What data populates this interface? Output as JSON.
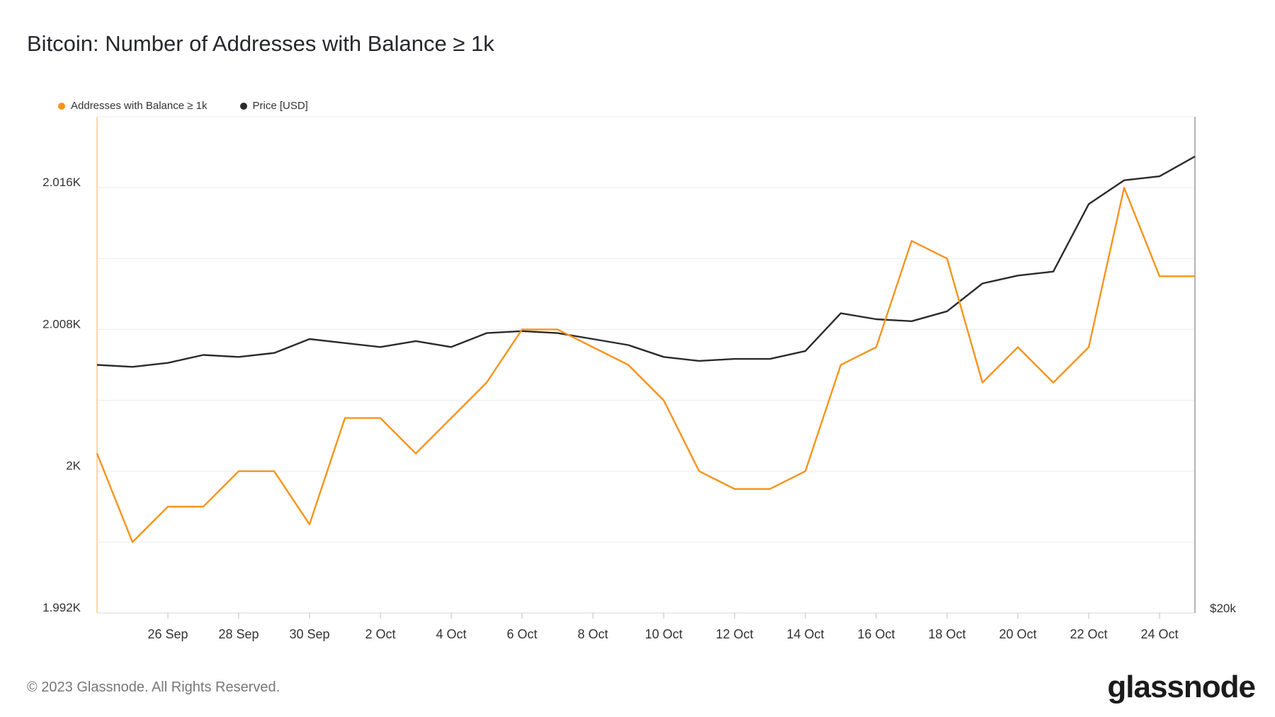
{
  "title": "Bitcoin: Number of Addresses with Balance ≥ 1k",
  "footer": {
    "copyright": "© 2023 Glassnode. All Rights Reserved.",
    "brand": "glassnode"
  },
  "chart_data": {
    "type": "line",
    "title": "Bitcoin: Number of Addresses with Balance ≥ 1k",
    "x_tick_labels": [
      "26 Sep",
      "28 Sep",
      "30 Sep",
      "2 Oct",
      "4 Oct",
      "6 Oct",
      "8 Oct",
      "10 Oct",
      "12 Oct",
      "14 Oct",
      "16 Oct",
      "18 Oct",
      "20 Oct",
      "22 Oct",
      "24 Oct"
    ],
    "y_left_ticks": [
      "1.992K",
      "2K",
      "2.008K",
      "2.016K"
    ],
    "y_left_tick_values": [
      1992,
      2000,
      2008,
      2016
    ],
    "y_left_range": [
      1992,
      2020
    ],
    "y_right_tick_label": "$20k",
    "legend_position": "top-left",
    "grid": true,
    "x": [
      "2023-09-24",
      "2023-09-25",
      "2023-09-26",
      "2023-09-27",
      "2023-09-28",
      "2023-09-29",
      "2023-09-30",
      "2023-10-01",
      "2023-10-02",
      "2023-10-03",
      "2023-10-04",
      "2023-10-05",
      "2023-10-06",
      "2023-10-07",
      "2023-10-08",
      "2023-10-09",
      "2023-10-10",
      "2023-10-11",
      "2023-10-12",
      "2023-10-13",
      "2023-10-14",
      "2023-10-15",
      "2023-10-16",
      "2023-10-17",
      "2023-10-18",
      "2023-10-19",
      "2023-10-20",
      "2023-10-21",
      "2023-10-22",
      "2023-10-23",
      "2023-10-24",
      "2023-10-25"
    ],
    "series": [
      {
        "name": "Addresses with Balance ≥ 1k",
        "color": "#f7931a",
        "axis": "left",
        "values": [
          2001,
          1996,
          1998,
          1998,
          2000,
          2000,
          1997,
          2003,
          2003,
          2001,
          2003,
          2005,
          2008,
          2008,
          2007,
          2006,
          2004,
          2000,
          1999,
          1999,
          2000,
          2006,
          2007,
          2013,
          2012,
          2005,
          2007,
          2005,
          2007,
          2016,
          2011,
          2011
        ]
      },
      {
        "name": "Price [USD]",
        "color": "#2b2b2b",
        "axis": "right",
        "values": [
          26250,
          26200,
          26300,
          26500,
          26450,
          26550,
          26900,
          26800,
          26700,
          26850,
          26700,
          27050,
          27100,
          27050,
          26900,
          26750,
          26450,
          26350,
          26400,
          26400,
          26600,
          27550,
          27400,
          27350,
          27600,
          28300,
          28500,
          28600,
          30300,
          30900,
          31000,
          31500
        ]
      }
    ]
  }
}
